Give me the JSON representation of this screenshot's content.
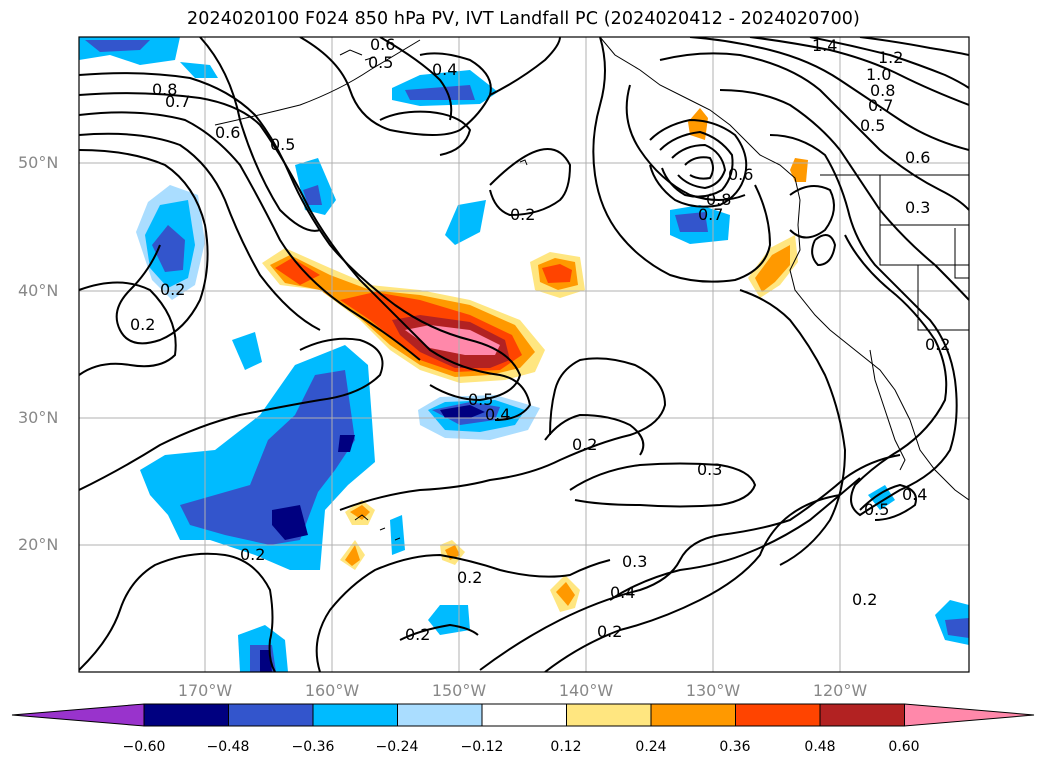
{
  "title": "2024020100 F024 850 hPa PV, IVT Landfall PC (2024020412 - 2024020700)",
  "lat_labels": [
    "50°N",
    "40°N",
    "30°N",
    "20°N"
  ],
  "lon_labels": [
    "170°W",
    "160°W",
    "150°W",
    "140°W",
    "130°W",
    "120°W"
  ],
  "colorbar": {
    "ticks": [
      "−0.60",
      "−0.48",
      "−0.36",
      "−0.24",
      "−0.12",
      "0.12",
      "0.24",
      "0.36",
      "0.48",
      "0.60"
    ],
    "colors": [
      "#9933cc",
      "#000080",
      "#3355cc",
      "#00bbff",
      "#aaddff",
      "#ffffff",
      "#ffe680",
      "#ff9900",
      "#ff4400",
      "#b22222",
      "#ff88aa"
    ]
  },
  "contour_labels": [
    "0.6",
    "0.5",
    "0.4",
    "0.8",
    "0.7",
    "0.6",
    "0.5",
    "1.4",
    "1.2",
    "1.0",
    "0.8",
    "0.7",
    "0.5",
    "0.6",
    "0.2",
    "0.2",
    "0.2",
    "0.8",
    "0.7",
    "0.6",
    "0.3",
    "0.5",
    "0.4",
    "0.2",
    "0.3",
    "0.2",
    "0.3",
    "0.4",
    "0.2",
    "0.2",
    "0.2",
    "0.2",
    "0.5",
    "0.4",
    "0.2"
  ]
}
